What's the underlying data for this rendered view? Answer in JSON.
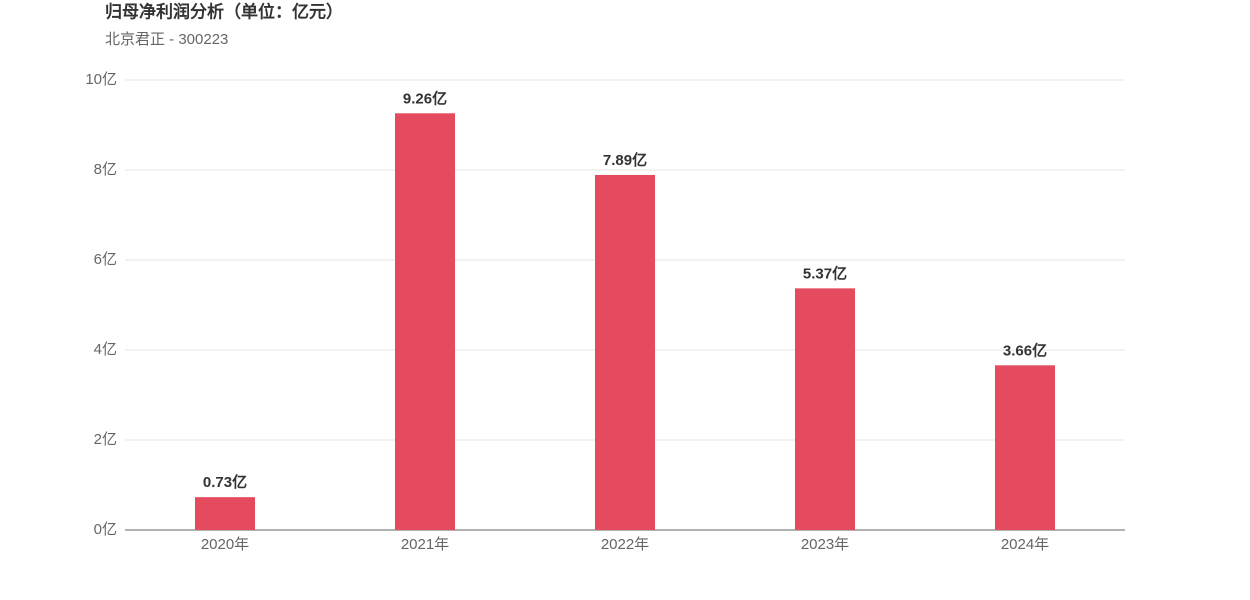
{
  "chart_data": {
    "type": "bar",
    "title": "归母净利润分析（单位：亿元）",
    "subtitle": "北京君正 - 300223",
    "categories": [
      "2020年",
      "2021年",
      "2022年",
      "2023年",
      "2024年"
    ],
    "values": [
      0.73,
      9.26,
      7.89,
      5.37,
      3.66
    ],
    "value_labels": [
      "0.73亿",
      "9.26亿",
      "7.89亿",
      "5.37亿",
      "3.66亿"
    ],
    "color": "#e54b5f",
    "ylim": [
      0,
      10
    ],
    "yticks": [
      {
        "value": 0,
        "label": "0亿"
      },
      {
        "value": 2,
        "label": "2亿"
      },
      {
        "value": 4,
        "label": "4亿"
      },
      {
        "value": 6,
        "label": "6亿"
      },
      {
        "value": 8,
        "label": "8亿"
      },
      {
        "value": 10,
        "label": "10亿"
      }
    ],
    "grid": true
  }
}
